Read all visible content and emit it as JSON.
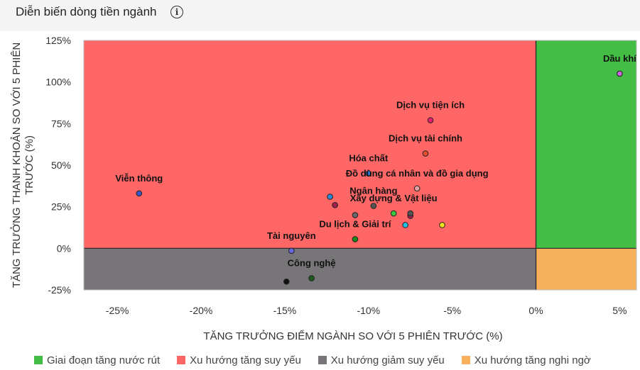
{
  "header": {
    "title": "Diễn biến dòng tiền ngành",
    "info_icon": "info-icon"
  },
  "colors": {
    "green": "#44bd44",
    "red": "#ff6666",
    "gray": "#777577",
    "orange": "#f7b15d"
  },
  "chart_data": {
    "type": "scatter",
    "xlabel": "TĂNG TRƯỞNG ĐIỂM NGÀNH SO VỚI 5 PHIÊN TRƯỚC (%)",
    "ylabel": "TĂNG TRƯỞNG THANH KHOẢN SO VỚI 5 PHIÊN TRƯỚC (%)",
    "xlim": [
      -27,
      6
    ],
    "ylim": [
      -25,
      125
    ],
    "xticks": [
      -25,
      -20,
      -15,
      -10,
      -5,
      0,
      5
    ],
    "xtick_labels": [
      "-25%",
      "-20%",
      "-15%",
      "-10%",
      "-5%",
      "0%",
      "5%"
    ],
    "yticks": [
      125,
      100,
      75,
      50,
      25,
      0,
      -25
    ],
    "ytick_labels": [
      "125%",
      "100%",
      "75%",
      "50%",
      "25%",
      "0%",
      "-25%"
    ],
    "quadrant_split": {
      "x": 0,
      "y": 0
    },
    "points": [
      {
        "label": "Dầu khí",
        "x": 5.0,
        "y": 105,
        "color": "#c865e0"
      },
      {
        "label": "Dịch vụ tiện ích",
        "x": -6.3,
        "y": 77,
        "color": "#e6206e"
      },
      {
        "label": "Dịch vụ tài chính",
        "x": -6.6,
        "y": 57,
        "color": "#e8502d"
      },
      {
        "label": "Hóa chất",
        "x": -10.0,
        "y": 45,
        "color": "#2f7de0"
      },
      {
        "label": "Đồ dùng cá nhân và đồ gia dụng",
        "x": -7.1,
        "y": 36,
        "color": "#e0a0a0"
      },
      {
        "label": "Viễn thông",
        "x": -23.7,
        "y": 33,
        "color": "#3a56c8"
      },
      {
        "label": "",
        "x": -12.3,
        "y": 31,
        "color": "#2d8ad8"
      },
      {
        "label": "Ngân hàng",
        "x": -9.7,
        "y": 25.5,
        "color": "#555555"
      },
      {
        "label": "",
        "x": -12.0,
        "y": 26,
        "color": "#a0204a"
      },
      {
        "label": "",
        "x": -10.8,
        "y": 20,
        "color": "#666666"
      },
      {
        "label": "Xây dựng & Vật liệu",
        "x": -8.5,
        "y": 21,
        "color": "#3cc83c"
      },
      {
        "label": "",
        "x": -7.5,
        "y": 19.5,
        "color": "#b02050"
      },
      {
        "label": "",
        "x": -7.5,
        "y": 21,
        "color": "#555555"
      },
      {
        "label": "",
        "x": -5.6,
        "y": 14,
        "color": "#f0e020"
      },
      {
        "label": "",
        "x": -7.8,
        "y": 14,
        "color": "#20c0e0"
      },
      {
        "label": "Du lịch & Giải trí",
        "x": -10.8,
        "y": 5.5,
        "color": "#1a8a1a"
      },
      {
        "label": "Tài nguyên",
        "x": -14.6,
        "y": -1.5,
        "color": "#6a6ae0"
      },
      {
        "label": "Công nghệ",
        "x": -13.4,
        "y": -18,
        "color": "#1e5a1e"
      },
      {
        "label": "",
        "x": -14.9,
        "y": -20,
        "color": "#111111"
      }
    ],
    "legend": [
      {
        "label": "Giai đoạn tăng nước rút",
        "color": "#44bd44"
      },
      {
        "label": "Xu hướng tăng suy yếu",
        "color": "#ff6666"
      },
      {
        "label": "Xu hướng giảm suy yếu",
        "color": "#777577"
      },
      {
        "label": "Xu hướng tăng nghi ngờ",
        "color": "#f7b15d"
      }
    ],
    "legend_position": "bottom"
  }
}
